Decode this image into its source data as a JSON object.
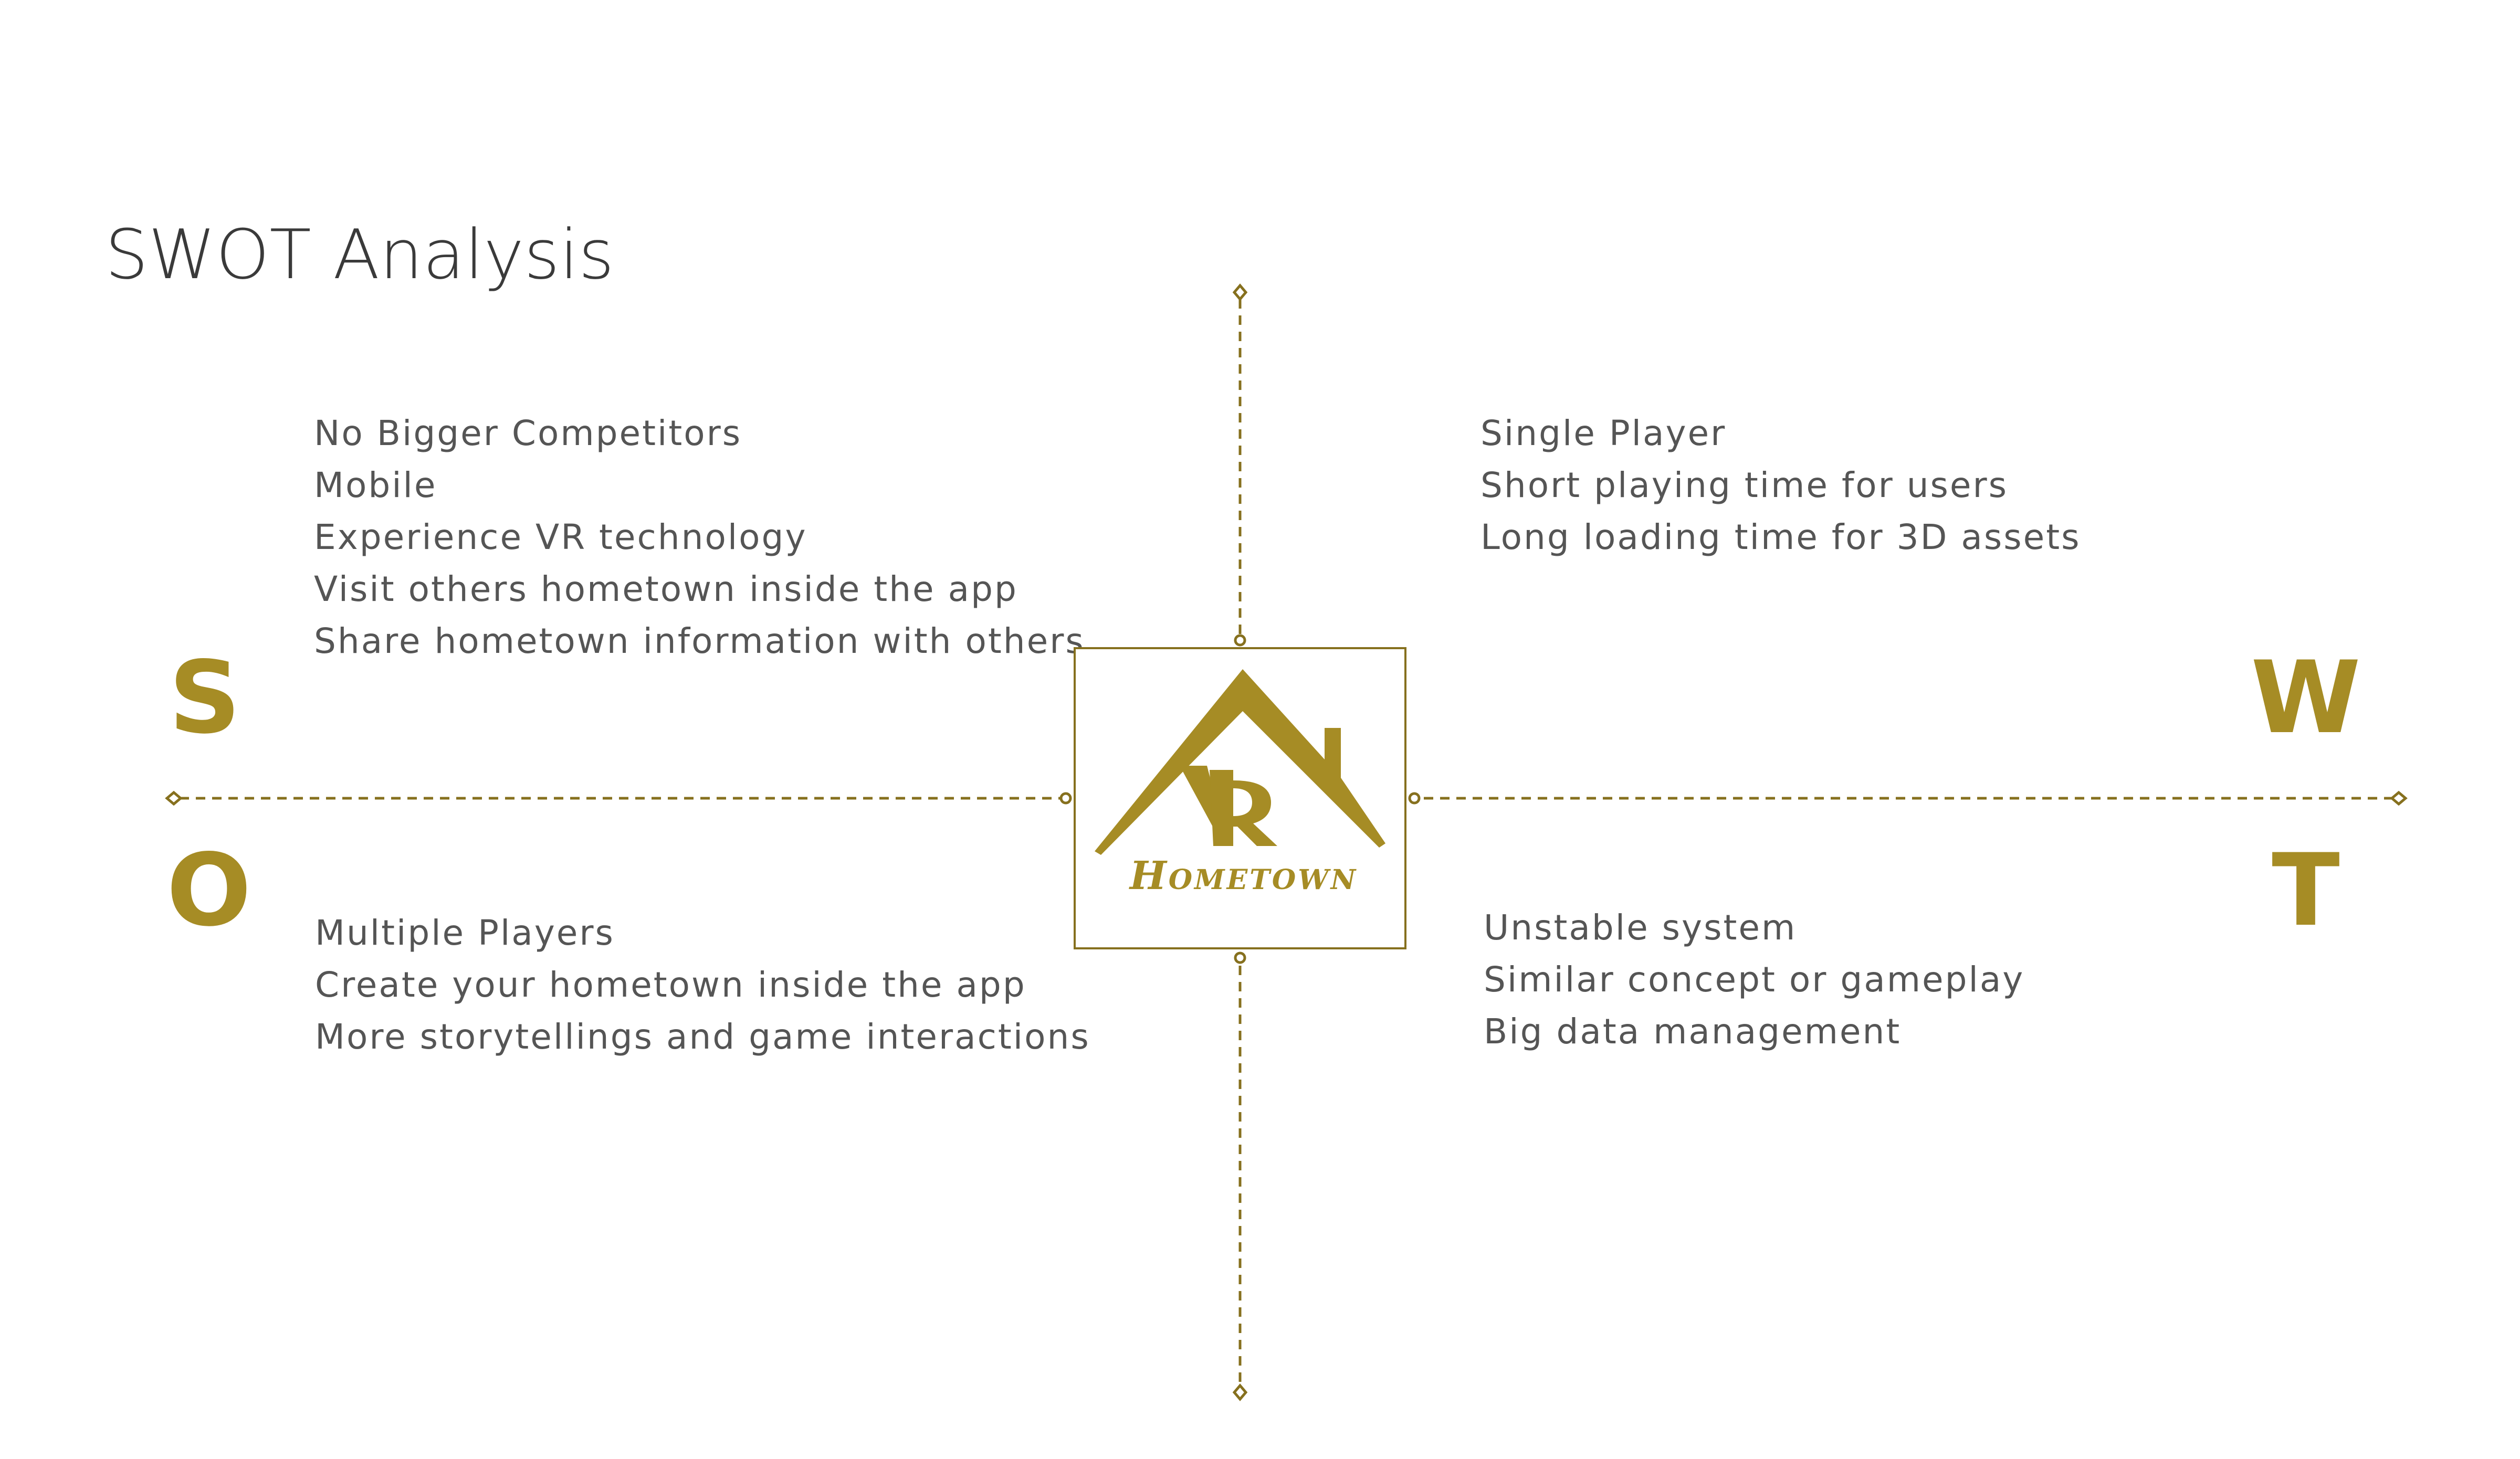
{
  "title": "SWOT Analysis",
  "accent_color": "#a68c25",
  "line_color": "#86701e",
  "text_color": "#555555",
  "quadrants": {
    "strengths": {
      "letter": "S",
      "items": [
        "No Bigger Competitors",
        "Mobile",
        "Experience VR technology",
        "Visit others hometown inside the app",
        "Share hometown information with others"
      ]
    },
    "weaknesses": {
      "letter": "W",
      "items": [
        "Single Player",
        "Short playing time for users",
        "Long loading time for 3D assets"
      ]
    },
    "opportunities": {
      "letter": "O",
      "items": [
        "Multiple Players",
        "Create your hometown inside the app",
        "More storytellings and game interactions"
      ]
    },
    "threats": {
      "letter": "T",
      "items": [
        "Unstable system",
        "Similar concept or gameplay",
        "Big data management"
      ]
    }
  },
  "logo": {
    "mark": "VR",
    "word": "Hometown"
  }
}
